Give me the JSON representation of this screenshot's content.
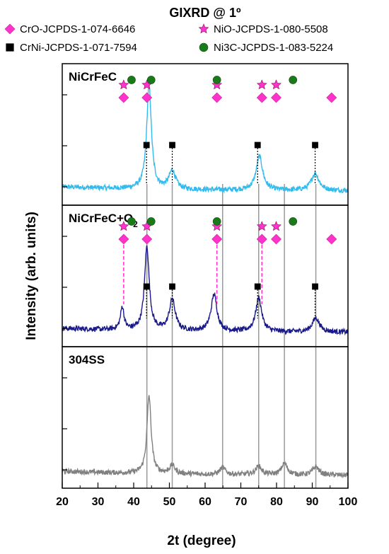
{
  "chart_data": {
    "type": "line",
    "title": "GIXRD @ 1º",
    "xlabel": "2t (degree)",
    "ylabel": "Intensity (arb. units)",
    "xlim": [
      20,
      100
    ],
    "xticks": [
      "20",
      "30",
      "40",
      "50",
      "60",
      "70",
      "80",
      "90",
      "100"
    ],
    "grid": false,
    "legend_position": "top",
    "legend": [
      {
        "label": "CrO-JCPDS-1-074-6646",
        "marker": "diamond",
        "color": "#ff33cc"
      },
      {
        "label": "NiO-JCPDS-1-080-5508",
        "marker": "star",
        "color": "#ff33cc"
      },
      {
        "label": "CrNi-JCPDS-1-071-7594",
        "marker": "square",
        "color": "#000000"
      },
      {
        "label": "Ni3C-JCPDS-1-083-5224",
        "marker": "circle",
        "color": "#1a7a1a"
      }
    ],
    "reference_peaks": {
      "CrO": [
        37.2,
        43.7,
        63.3,
        75.9,
        79.9,
        95.4
      ],
      "NiO": [
        37.2,
        43.7,
        63.3,
        75.9,
        79.9
      ],
      "CrNi": [
        43.6,
        50.8,
        74.7,
        90.8
      ],
      "Ni3C": [
        39.4,
        44.9,
        63.3,
        84.6
      ]
    },
    "reference_lines_x": [
      43.7,
      50.8,
      64.9,
      75.0,
      82.2,
      91.0
    ],
    "series": [
      {
        "name": "NiCrFeC",
        "color": "#33bbee",
        "baseline": 0.1,
        "peaks": [
          {
            "x": 44.3,
            "height": 0.73,
            "width": 0.8
          },
          {
            "x": 50.8,
            "height": 0.13,
            "width": 1.1
          },
          {
            "x": 75.2,
            "height": 0.24,
            "width": 1.1
          },
          {
            "x": 90.8,
            "height": 0.12,
            "width": 1.3
          }
        ],
        "markers": {
          "CrO": true,
          "NiO": true,
          "CrNi": true,
          "Ni3C": true
        }
      },
      {
        "name": "NiCrFeC+O",
        "name_subscript": "2",
        "color": "#1a1a8a",
        "baseline": 0.1,
        "peaks": [
          {
            "x": 36.8,
            "height": 0.16,
            "width": 0.6
          },
          {
            "x": 43.7,
            "height": 0.59,
            "width": 0.8
          },
          {
            "x": 50.8,
            "height": 0.22,
            "width": 1.0
          },
          {
            "x": 62.5,
            "height": 0.26,
            "width": 1.0
          },
          {
            "x": 75.0,
            "height": 0.24,
            "width": 1.0
          },
          {
            "x": 91.0,
            "height": 0.1,
            "width": 1.2
          }
        ],
        "markers": {
          "CrO": true,
          "NiO": true,
          "CrNi": true,
          "Ni3C": true
        }
      },
      {
        "name": "304SS",
        "color": "#808080",
        "baseline": 0.09,
        "peaks": [
          {
            "x": 44.3,
            "height": 0.55,
            "width": 0.7
          },
          {
            "x": 50.8,
            "height": 0.06,
            "width": 0.9
          },
          {
            "x": 64.9,
            "height": 0.05,
            "width": 0.9
          },
          {
            "x": 75.0,
            "height": 0.06,
            "width": 1.0
          },
          {
            "x": 82.2,
            "height": 0.08,
            "width": 1.0
          },
          {
            "x": 91.0,
            "height": 0.06,
            "width": 1.0
          }
        ],
        "markers": {
          "CrO": false,
          "NiO": false,
          "CrNi": false,
          "Ni3C": false
        }
      }
    ]
  }
}
